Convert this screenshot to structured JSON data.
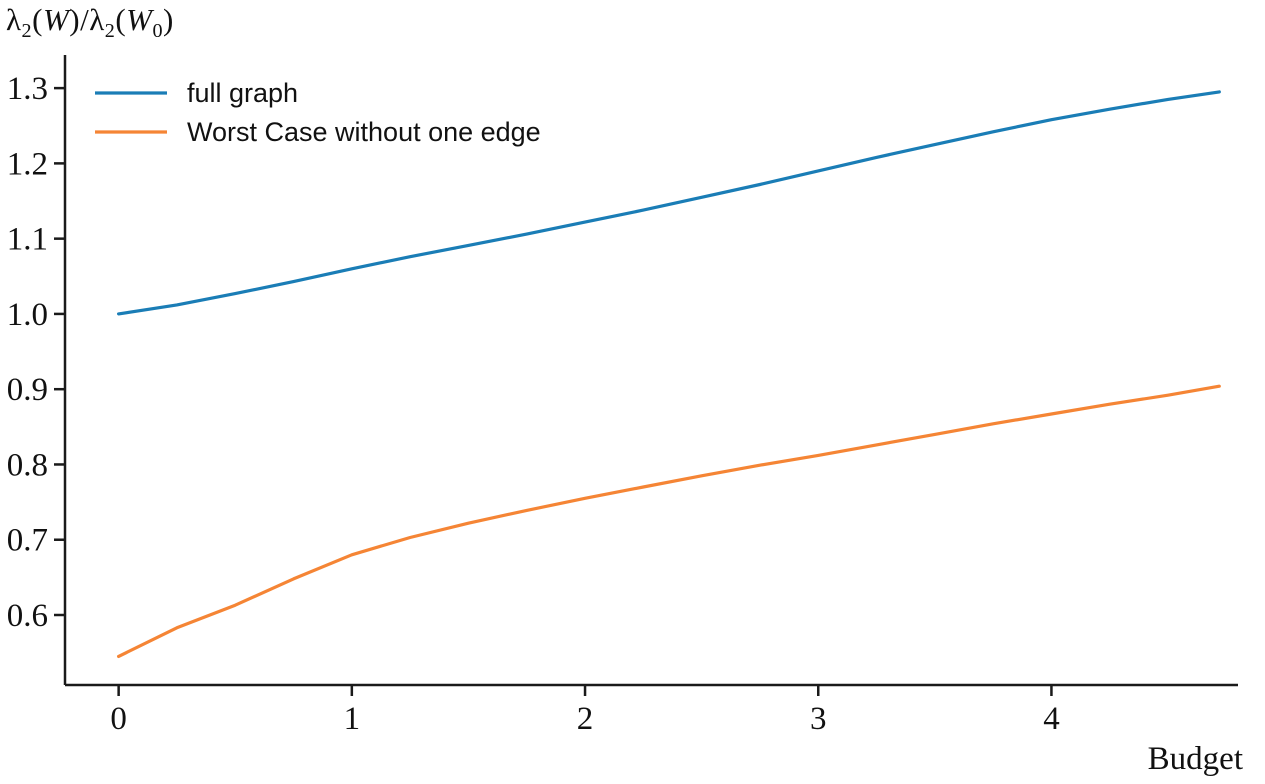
{
  "figure": {
    "xlabel": "Budget",
    "ylabel_parts": {
      "lambda1": "λ",
      "sub1": "2",
      "open1": "(",
      "w1": "W",
      "close_slash": ")/",
      "lambda2": "λ",
      "sub2": "2",
      "open2": "(",
      "w2": "W",
      "sub3": "0",
      "close2": ")"
    }
  },
  "chart_data": {
    "type": "line",
    "title": "",
    "xlabel": "Budget",
    "ylabel": "lambda2(W)/lambda2(W0)",
    "grid": false,
    "legend_position": "upper left",
    "xlim": [
      -0.23,
      4.8
    ],
    "ylim": [
      0.507,
      1.344
    ],
    "xticks": [
      0,
      1,
      2,
      3,
      4
    ],
    "yticks": [
      0.6,
      0.7,
      0.8,
      0.9,
      1.0,
      1.1,
      1.2,
      1.3
    ],
    "axis_color": "#1a1a1a",
    "series": [
      {
        "name": "full graph",
        "color": "#1a7db6",
        "x": [
          0,
          0.25,
          0.5,
          0.75,
          1,
          1.25,
          1.5,
          1.75,
          2,
          2.25,
          2.5,
          2.75,
          3,
          3.25,
          3.5,
          3.75,
          4,
          4.25,
          4.5,
          4.72
        ],
        "y": [
          1.0,
          1.012,
          1.027,
          1.043,
          1.06,
          1.076,
          1.091,
          1.106,
          1.122,
          1.138,
          1.155,
          1.172,
          1.19,
          1.208,
          1.225,
          1.242,
          1.258,
          1.272,
          1.285,
          1.295
        ]
      },
      {
        "name": "Worst Case without one edge",
        "color": "#f58535",
        "x": [
          0,
          0.25,
          0.5,
          0.75,
          1,
          1.25,
          1.5,
          1.75,
          2,
          2.25,
          2.5,
          2.75,
          3,
          3.25,
          3.5,
          3.75,
          4,
          4.25,
          4.5,
          4.72
        ],
        "y": [
          0.545,
          0.583,
          0.613,
          0.648,
          0.68,
          0.703,
          0.722,
          0.739,
          0.755,
          0.77,
          0.785,
          0.799,
          0.812,
          0.826,
          0.84,
          0.854,
          0.867,
          0.88,
          0.892,
          0.904
        ]
      }
    ]
  }
}
